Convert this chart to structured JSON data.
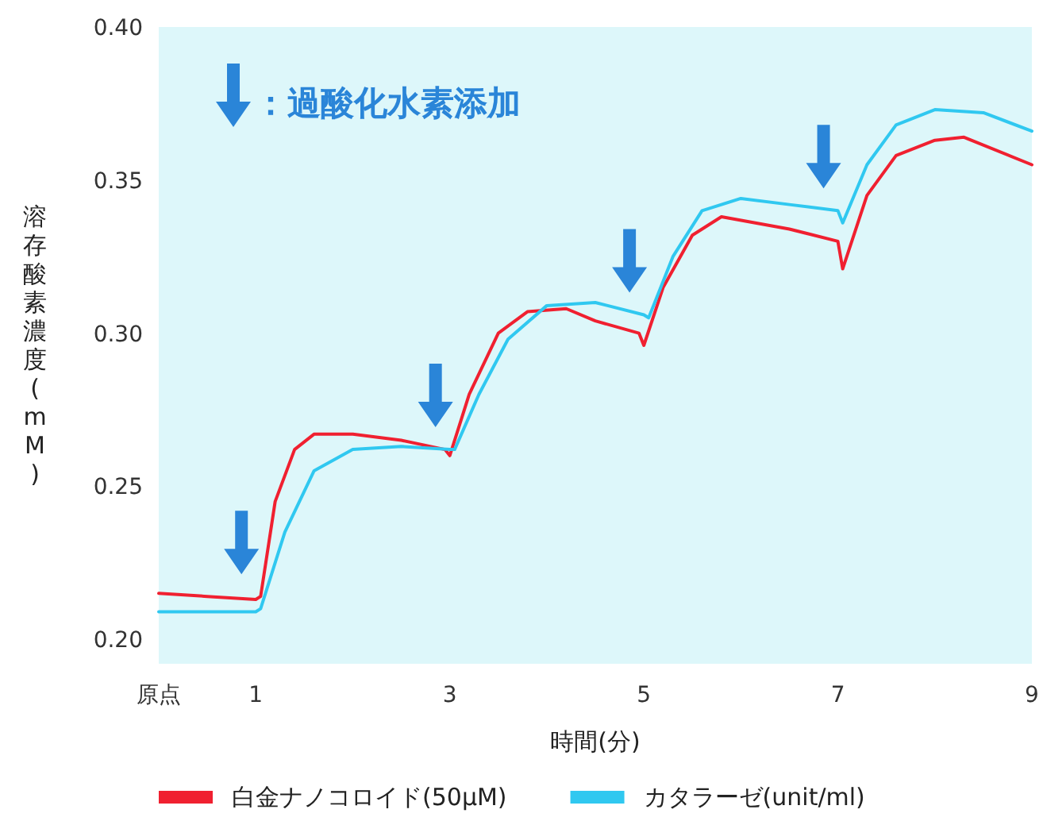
{
  "chart_data": {
    "type": "line",
    "xlabel": "時間(分)",
    "ylabel": "溶存酸素濃度(mM)",
    "annotations": [
      "：過酸化水素添加"
    ],
    "xlim": [
      0,
      9
    ],
    "ylim": [
      0.192,
      0.4
    ],
    "xticks": [
      {
        "value": 0,
        "label": "原点"
      },
      1,
      3,
      5,
      7,
      9
    ],
    "yticks": [
      {
        "value": 0.2,
        "label": "0.20"
      },
      {
        "value": 0.25,
        "label": "0.25"
      },
      {
        "value": 0.3,
        "label": "0.30"
      },
      {
        "value": 0.35,
        "label": "0.35"
      },
      {
        "value": 0.4,
        "label": "0.40"
      }
    ],
    "grid": false,
    "legend": "bottom",
    "marker": "none",
    "line_style": "solid",
    "series": [
      {
        "name": "白金ナノコロイド(50μM)",
        "color": "#f02030",
        "x": [
          0,
          0.5,
          1.0,
          1.05,
          1.2,
          1.4,
          1.6,
          2.0,
          2.5,
          2.95,
          3.0,
          3.2,
          3.5,
          3.8,
          4.2,
          4.5,
          4.95,
          5.0,
          5.2,
          5.5,
          5.8,
          6.5,
          7.0,
          7.05,
          7.3,
          7.6,
          8.0,
          8.3,
          9.0
        ],
        "values": [
          0.215,
          0.214,
          0.213,
          0.214,
          0.245,
          0.262,
          0.267,
          0.267,
          0.265,
          0.262,
          0.26,
          0.28,
          0.3,
          0.307,
          0.308,
          0.304,
          0.3,
          0.296,
          0.315,
          0.332,
          0.338,
          0.334,
          0.33,
          0.321,
          0.345,
          0.358,
          0.363,
          0.364,
          0.355
        ]
      },
      {
        "name": "カタラーゼ(unit/ml)",
        "color": "#30c8f0",
        "x": [
          0,
          0.5,
          1.0,
          1.05,
          1.3,
          1.6,
          2.0,
          2.5,
          3.0,
          3.05,
          3.3,
          3.6,
          4.0,
          4.5,
          5.0,
          5.05,
          5.3,
          5.6,
          6.0,
          6.5,
          7.0,
          7.05,
          7.3,
          7.6,
          8.0,
          8.5,
          9.0
        ],
        "values": [
          0.209,
          0.209,
          0.209,
          0.21,
          0.235,
          0.255,
          0.262,
          0.263,
          0.262,
          0.262,
          0.28,
          0.298,
          0.309,
          0.31,
          0.306,
          0.305,
          0.325,
          0.34,
          0.344,
          0.342,
          0.34,
          0.336,
          0.355,
          0.368,
          0.373,
          0.372,
          0.366
        ]
      }
    ]
  }
}
